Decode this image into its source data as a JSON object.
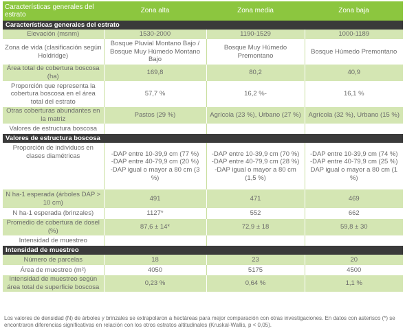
{
  "header": {
    "corner": "Características generales del estrato",
    "col_alta": "Zona alta",
    "col_media": "Zona media",
    "col_baja": "Zona baja"
  },
  "sections": {
    "s1": "Características generales del estrato",
    "s2": "Valores de estructura boscosa",
    "s3": "Intensidad de muestreo"
  },
  "rows": {
    "elev": {
      "label": "Elevación (msnm)",
      "alta": "1530-2000",
      "media": "1190-1529",
      "baja": "1000-1189"
    },
    "vida": {
      "label": "Zona de vida (clasificación según Holdridge)",
      "alta": "Bosque Pluvial Montano Bajo / Bosque Muy Húmedo Montano Bajo",
      "media": "Bosque Muy Húmedo Premontano",
      "baja": "Bosque Húmedo Premontano"
    },
    "area": {
      "label": "Área total de cobertura boscosa (ha)",
      "alta": "169,8",
      "media": "80,2",
      "baja": "40,9"
    },
    "prop": {
      "label": "Proporción que representa la cobertura boscosa en el área total del estrato",
      "alta": "57,7 %",
      "media": "16,2 %-",
      "baja": "16,1 %"
    },
    "otras": {
      "label": "Otras coberturas abundantes en la matriz",
      "alta": "Pastos (29 %)",
      "media": "Agrícola (23 %), Urbano (27 %)",
      "baja": "Agrícola (32 %), Urbano (15 %)"
    },
    "valest": {
      "label": "Valores de estructura boscosa"
    },
    "propind": {
      "label": "Proporción de individuos en clases diamétricas",
      "alta": [
        "-DAP entre 10-39,9 cm (77 %)",
        "-DAP entre 40-79,9 cm (20 %)",
        "-DAP igual o mayor a 80 cm (3 %)"
      ],
      "media": [
        "-DAP entre 10-39,9 cm (70 %)",
        "-DAP entre 40-79,9 cm (28 %)",
        "-DAP igual o mayor a 80 cm (1,5 %)"
      ],
      "baja": [
        "-DAP entre 10-39,9 cm (74 %)",
        "-DAP entre 40-79,9 cm (25 %)",
        "DAP igual o mayor a 80 cm (1 %)"
      ]
    },
    "nha_arb": {
      "label": "N ha-1 esperada  (árboles DAP > 10 cm)",
      "alta": "491",
      "media": "471",
      "baja": "469"
    },
    "nha_brz": {
      "label": "N ha-1 esperada (brinzales)",
      "alta": "1127*",
      "media": "552",
      "baja": "662"
    },
    "prom": {
      "label": "Promedio de cobertura de dosel (%)",
      "alta": "87,6 ± 14*",
      "media": "72,9 ± 18",
      "baja": "59,8 ± 30"
    },
    "intm": {
      "label": "Intensidad de muestreo"
    },
    "nparc": {
      "label": "Número de parcelas",
      "alta": "18",
      "media": "23",
      "baja": "20"
    },
    "aream": {
      "label": "Área de muestreo (m²)",
      "alta": "4050",
      "media": "5175",
      "baja": "4500"
    },
    "intsup": {
      "label": "Intensidad de muestreo según área total de superficie boscosa",
      "alta": "0,23 %",
      "media": "0,64 %",
      "baja": "1,1 %"
    }
  },
  "footnote": "Los valores de densidad (N) de árboles y brinzales se extrapolaron a hectáreas para  mejor comparación con otras investigaciones. En datos con asterisco (*) se encontraron diferencias significativas en relación con los otros estratos altitudinales (Kruskal-Wallis, p < 0,05).",
  "colors": {
    "green_header": "#8cc63f",
    "green_row": "#d4e6b3",
    "section_bar": "#3a3a3a",
    "text": "#6a6a6a"
  }
}
